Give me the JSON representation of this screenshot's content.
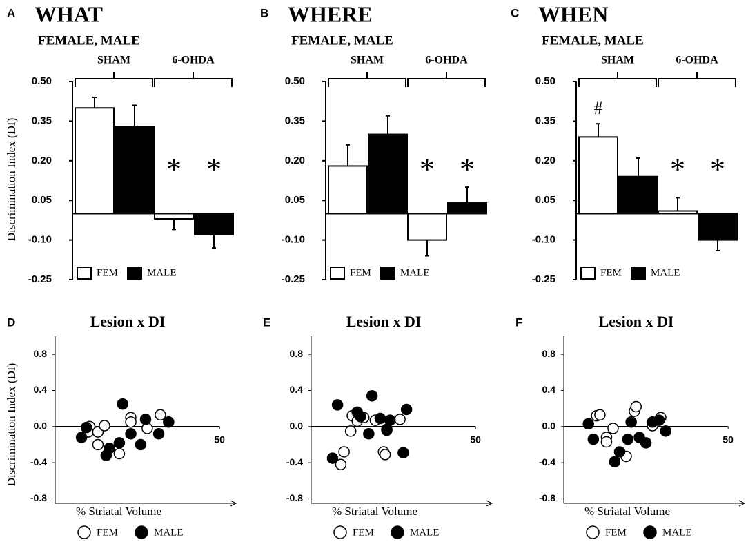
{
  "chart_data": [
    {
      "type": "bar",
      "panel": "A",
      "title": "WHAT",
      "subtitle": "FEMALE, MALE",
      "ylabel": "Discrimination Index (DI)",
      "categories": [
        "SHAM",
        "6-OHDA"
      ],
      "series": [
        {
          "name": "FEM",
          "color": "#ffffff",
          "values": [
            0.4,
            -0.02
          ],
          "errors": [
            0.04,
            0.04
          ],
          "annotations": [
            null,
            "*"
          ]
        },
        {
          "name": "MALE",
          "color": "#000000",
          "values": [
            0.33,
            -0.08
          ],
          "errors": [
            0.08,
            0.05
          ],
          "annotations": [
            null,
            "*"
          ]
        }
      ],
      "ylim": [
        -0.25,
        0.5
      ],
      "yticks": [
        {
          "value": 0.5,
          "label": "0.50"
        },
        0.35,
        {
          "value": 0.2,
          "label": "0.20"
        },
        0.05,
        {
          "value": -0.1,
          "label": "-0.10"
        },
        -0.25
      ]
    },
    {
      "type": "bar",
      "panel": "B",
      "title": "WHERE",
      "subtitle": "FEMALE, MALE",
      "categories": [
        "SHAM",
        "6-OHDA"
      ],
      "series": [
        {
          "name": "FEM",
          "color": "#ffffff",
          "values": [
            0.18,
            -0.1
          ],
          "errors": [
            0.08,
            0.06
          ],
          "annotations": [
            null,
            "*"
          ]
        },
        {
          "name": "MALE",
          "color": "#000000",
          "values": [
            0.3,
            0.04
          ],
          "errors": [
            0.07,
            0.06
          ],
          "annotations": [
            null,
            "*"
          ]
        }
      ],
      "ylim": [
        -0.25,
        0.5
      ],
      "yticks": [
        {
          "value": 0.5,
          "label": "0.50"
        },
        0.35,
        {
          "value": 0.2,
          "label": "0.20"
        },
        0.05,
        {
          "value": -0.1,
          "label": "-0.10"
        },
        -0.25
      ]
    },
    {
      "type": "bar",
      "panel": "C",
      "title": "WHEN",
      "subtitle": "FEMALE, MALE",
      "categories": [
        "SHAM",
        "6-OHDA"
      ],
      "series": [
        {
          "name": "FEM",
          "color": "#ffffff",
          "values": [
            0.29,
            0.01
          ],
          "errors": [
            0.05,
            0.05
          ],
          "annotations": [
            "#",
            "*"
          ]
        },
        {
          "name": "MALE",
          "color": "#000000",
          "values": [
            0.14,
            -0.1
          ],
          "errors": [
            0.07,
            0.04
          ],
          "annotations": [
            null,
            "*"
          ]
        }
      ],
      "ylim": [
        -0.25,
        0.5
      ],
      "yticks": [
        {
          "value": 0.5,
          "label": "0.50"
        },
        0.35,
        {
          "value": 0.2,
          "label": "0.20"
        },
        0.05,
        {
          "value": -0.1,
          "label": "-0.10"
        },
        -0.25
      ]
    },
    {
      "type": "scatter",
      "panel": "D",
      "title": "Lesion x DI",
      "ylabel": "Discrimination Index (DI)",
      "xlabel": "% Striatal Volume",
      "series": [
        {
          "name": "FEM",
          "color": "#ffffff",
          "x": [
            10.5,
            10,
            13,
            13,
            15,
            19.5,
            23,
            23,
            28,
            32
          ],
          "values": [
            0.0,
            -0.06,
            -0.06,
            -0.2,
            0.01,
            -0.3,
            0.1,
            0.05,
            -0.02,
            0.13
          ]
        },
        {
          "name": "MALE",
          "color": "#000000",
          "x": [
            8,
            9.5,
            15.5,
            16.5,
            19.5,
            20.5,
            23,
            26,
            27.5,
            31.5,
            34.5
          ],
          "values": [
            -0.12,
            -0.01,
            -0.32,
            -0.24,
            -0.18,
            0.25,
            -0.08,
            -0.2,
            0.08,
            -0.08,
            0.05
          ]
        }
      ],
      "xlim": [
        0,
        55
      ],
      "xticks": [
        50
      ],
      "ylim": [
        -0.85,
        1.0
      ],
      "yticks": [
        0.8,
        0.4,
        {
          "value": 0,
          "label": "0.0"
        },
        -0.4,
        -0.8
      ]
    },
    {
      "type": "scatter",
      "panel": "E",
      "title": "Lesion x DI",
      "xlabel": "% Striatal Volume",
      "series": [
        {
          "name": "FEM",
          "color": "#ffffff",
          "x": [
            9,
            10,
            12,
            12.5,
            14,
            16,
            19.5,
            22,
            22.5,
            23,
            27
          ],
          "values": [
            -0.42,
            -0.28,
            -0.05,
            0.12,
            0.06,
            0.1,
            0.07,
            -0.28,
            -0.31,
            -0.03,
            0.08
          ]
        },
        {
          "name": "MALE",
          "color": "#000000",
          "x": [
            6.5,
            8,
            14,
            15,
            17.5,
            18.5,
            21,
            23,
            24,
            28,
            29
          ],
          "values": [
            -0.35,
            0.24,
            0.16,
            0.11,
            -0.08,
            0.34,
            0.09,
            -0.04,
            0.07,
            -0.29,
            0.19
          ]
        }
      ],
      "xlim": [
        0,
        55
      ],
      "xticks": [
        50
      ],
      "ylim": [
        -0.85,
        1.0
      ],
      "yticks": [
        0.8,
        0.4,
        {
          "value": 0,
          "label": "0.0"
        },
        -0.4,
        -0.8
      ]
    },
    {
      "type": "scatter",
      "panel": "F",
      "title": "Lesion x DI",
      "xlabel": "% Striatal Volume",
      "series": [
        {
          "name": "FEM",
          "color": "#ffffff",
          "x": [
            10,
            11,
            13,
            13,
            15,
            19,
            21.5,
            22,
            27,
            29.5
          ],
          "values": [
            0.12,
            0.13,
            -0.12,
            -0.17,
            -0.02,
            -0.33,
            0.17,
            0.22,
            0.01,
            0.1
          ]
        },
        {
          "name": "MALE",
          "color": "#000000",
          "x": [
            7.5,
            9,
            15.5,
            17,
            19.5,
            20.5,
            23,
            25,
            27,
            29,
            31
          ],
          "values": [
            0.03,
            -0.14,
            -0.39,
            -0.28,
            -0.14,
            0.05,
            -0.12,
            -0.18,
            0.05,
            0.07,
            -0.05
          ]
        }
      ],
      "xlim": [
        0,
        55
      ],
      "xticks": [
        50
      ],
      "ylim": [
        -0.85,
        1.0
      ],
      "yticks": [
        0.8,
        0.4,
        {
          "value": 0,
          "label": "0.0"
        },
        -0.4,
        -0.8
      ]
    }
  ]
}
